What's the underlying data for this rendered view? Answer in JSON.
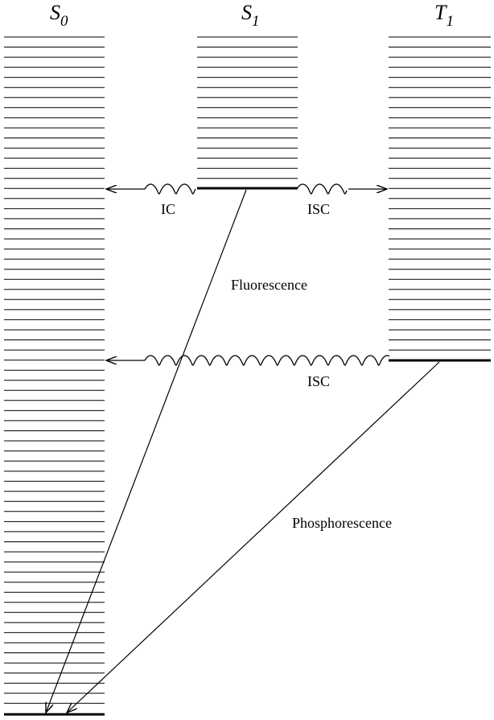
{
  "diagram": {
    "states": [
      {
        "id": "S0",
        "symbol": "S",
        "subscript": "0"
      },
      {
        "id": "S1",
        "symbol": "S",
        "subscript": "1"
      },
      {
        "id": "T1",
        "symbol": "T",
        "subscript": "1"
      }
    ],
    "processes": {
      "ic": "IC",
      "isc_s1_t1": "ISC",
      "fluorescence": "Fluorescence",
      "isc_t1_s0": "ISC",
      "phosphorescence": "Phosphorescence"
    },
    "colors": {
      "line": "#000000",
      "background": "#ffffff"
    }
  }
}
